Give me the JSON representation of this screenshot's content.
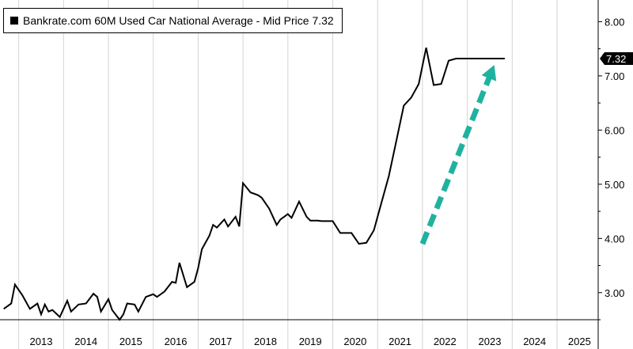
{
  "chart_data": {
    "type": "line",
    "series": [
      {
        "name": "Bankrate.com 60M Used Car National Average - Mid Price",
        "last_value_label": "7.32",
        "x": [
          "2012-09",
          "2012-11",
          "2012-12",
          "2013-02",
          "2013-04",
          "2013-06",
          "2013-07",
          "2013-08",
          "2013-09",
          "2013-10",
          "2013-12",
          "2014-02",
          "2014-03",
          "2014-05",
          "2014-07",
          "2014-09",
          "2014-10",
          "2014-11",
          "2015-01",
          "2015-02",
          "2015-04",
          "2015-05",
          "2015-06",
          "2015-08",
          "2015-09",
          "2015-11",
          "2016-01",
          "2016-02",
          "2016-04",
          "2016-06",
          "2016-07",
          "2016-08",
          "2016-10",
          "2016-12",
          "2017-01",
          "2017-02",
          "2017-04",
          "2017-05",
          "2017-06",
          "2017-08",
          "2017-09",
          "2017-11",
          "2017-12",
          "2018-01",
          "2018-03",
          "2018-05",
          "2018-06",
          "2018-08",
          "2018-10",
          "2018-11",
          "2018-12",
          "2019-01",
          "2019-02",
          "2019-04",
          "2019-06",
          "2019-07",
          "2019-09",
          "2019-10",
          "2019-11",
          "2020-01",
          "2020-03",
          "2020-05",
          "2020-06",
          "2020-08",
          "2020-10",
          "2020-12",
          "2021-02",
          "2021-04",
          "2021-06",
          "2021-08",
          "2021-10",
          "2021-12",
          "2022-02",
          "2022-04",
          "2022-06",
          "2022-08",
          "2022-10",
          "2022-12",
          "2023-02",
          "2023-04",
          "2023-05",
          "2023-07",
          "2023-09",
          "2023-10",
          "2023-11"
        ],
        "y": [
          2.7,
          2.8,
          3.15,
          2.95,
          2.7,
          2.8,
          2.6,
          2.78,
          2.65,
          2.68,
          2.55,
          2.85,
          2.65,
          2.78,
          2.8,
          2.98,
          2.92,
          2.65,
          2.88,
          2.68,
          2.5,
          2.6,
          2.8,
          2.78,
          2.65,
          2.92,
          2.97,
          2.92,
          3.02,
          3.2,
          3.18,
          3.55,
          3.1,
          3.2,
          3.45,
          3.8,
          4.05,
          4.25,
          4.2,
          4.35,
          4.22,
          4.4,
          4.22,
          5.02,
          4.85,
          4.8,
          4.75,
          4.55,
          4.25,
          4.35,
          4.4,
          4.45,
          4.38,
          4.68,
          4.4,
          4.33,
          4.33,
          4.32,
          4.32,
          4.32,
          4.1,
          4.1,
          4.1,
          3.9,
          3.92,
          4.15,
          4.65,
          5.15,
          5.8,
          6.45,
          6.6,
          6.85,
          7.52,
          6.83,
          6.85,
          7.28,
          7.32,
          7.32,
          7.32,
          7.32,
          7.32,
          7.32,
          7.32,
          7.32,
          7.32
        ]
      }
    ],
    "x_tick_labels": [
      "2013",
      "2014",
      "2015",
      "2016",
      "2017",
      "2018",
      "2019",
      "2020",
      "2021",
      "2022",
      "2023",
      "2024",
      "2025"
    ],
    "y_tick_labels": [
      "3.00",
      "4.00",
      "5.00",
      "6.00",
      "7.00",
      "8.00"
    ],
    "ylim": [
      2.5,
      8.4
    ],
    "xlim": [
      "2012-08",
      "2025-12"
    ],
    "y_axis_side": "right",
    "grid": "vertical-only",
    "legend_placement": "top-left",
    "annotation": {
      "type": "dashed-arrow",
      "direction": "up-right",
      "color": "#20b2a0"
    },
    "colors": {
      "line": "#000000",
      "arrow": "#20b2a0"
    }
  }
}
